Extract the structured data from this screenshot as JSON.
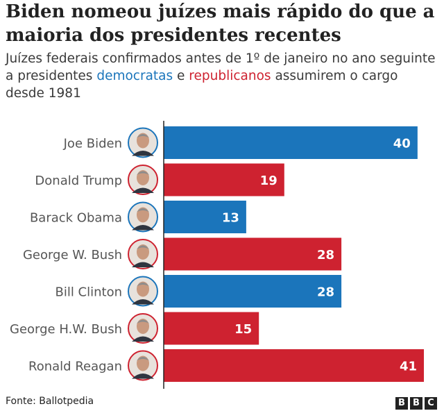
{
  "title": "Biden nomeou juízes mais rápido do que a maioria dos presidentes recentes",
  "subtitle": {
    "part1": "Juízes federais confirmados antes de 1º de janeiro no ano seguinte a presidentes ",
    "dem": "democratas",
    "part2": " e ",
    "rep": "republicanos",
    "part3": " assumirem o cargo desde 1981"
  },
  "colors": {
    "democrat": "#1b75bb",
    "republican": "#ce2230"
  },
  "chart_data": {
    "type": "bar",
    "orientation": "horizontal",
    "categories": [
      "Joe Biden",
      "Donald Trump",
      "Barack Obama",
      "George W. Bush",
      "Bill Clinton",
      "George H.W. Bush",
      "Ronald Reagan"
    ],
    "values": [
      40,
      19,
      13,
      28,
      28,
      15,
      41
    ],
    "party": [
      "democrat",
      "republican",
      "democrat",
      "republican",
      "democrat",
      "republican",
      "republican"
    ],
    "portrait_icons": [
      "biden-portrait-icon",
      "trump-portrait-icon",
      "obama-portrait-icon",
      "gw-bush-portrait-icon",
      "clinton-portrait-icon",
      "ghw-bush-portrait-icon",
      "reagan-portrait-icon"
    ],
    "xlim": [
      0,
      41
    ],
    "grid": false,
    "legend": "none"
  },
  "footer": {
    "source": "Fonte: Ballotpedia",
    "logo": [
      "B",
      "B",
      "C"
    ]
  }
}
